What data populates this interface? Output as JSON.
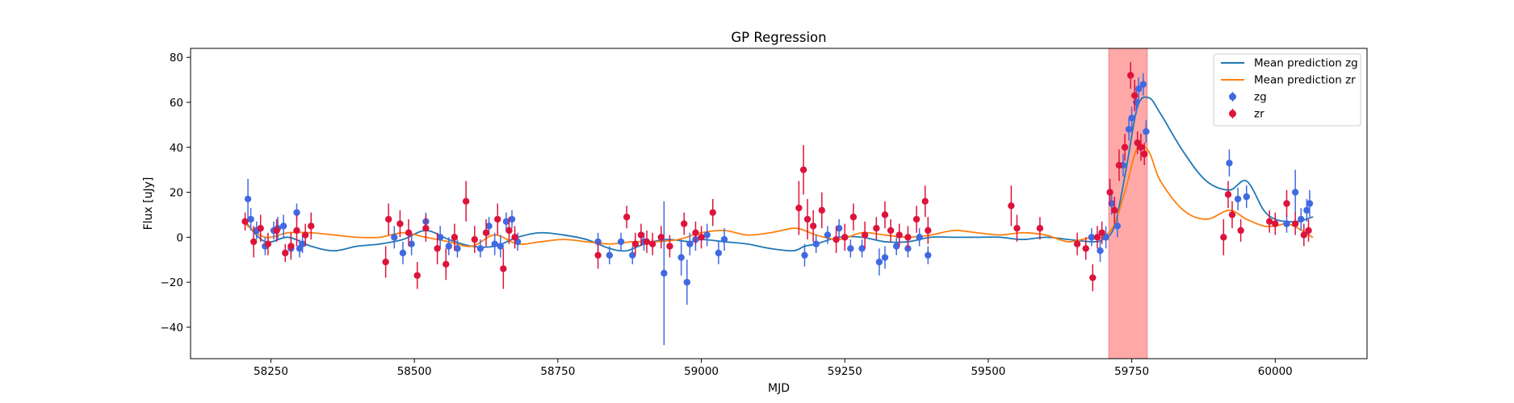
{
  "chart_data": {
    "type": "scatter",
    "title": "GP Regression",
    "xlabel": "MJD",
    "ylabel": "Flux [uJy]",
    "xlim": [
      58110,
      60160
    ],
    "ylim": [
      -54,
      84
    ],
    "xticks": [
      58250,
      58500,
      58750,
      59000,
      59250,
      59500,
      59750,
      60000
    ],
    "yticks": [
      -40,
      -20,
      0,
      20,
      40,
      60,
      80
    ],
    "grid": false,
    "legend_position": "top-right",
    "shaded_region": {
      "x": [
        59710,
        59777
      ],
      "color": "#ff9999"
    },
    "series": [
      {
        "name": "Mean prediction zg",
        "kind": "line",
        "color": "#1f77b4",
        "x": [
          58205,
          58240,
          58280,
          58320,
          58360,
          58400,
          58440,
          58480,
          58520,
          58560,
          58600,
          58640,
          58680,
          58720,
          58760,
          58800,
          58840,
          58870,
          58900,
          58940,
          58980,
          59000,
          59040,
          59080,
          59120,
          59160,
          59180,
          59200,
          59240,
          59280,
          59320,
          59360,
          59400,
          59440,
          59480,
          59520,
          59560,
          59600,
          59640,
          59680,
          59700,
          59720,
          59740,
          59760,
          59780,
          59800,
          59840,
          59880,
          59920,
          59950,
          59980,
          60000,
          60020,
          60040,
          60065
        ],
        "y": [
          7,
          -2,
          0,
          -4,
          -6,
          -4,
          -3,
          -1,
          3,
          -1,
          -4,
          -4,
          0,
          2,
          1,
          -1,
          -5,
          -6,
          -3,
          -1,
          -2,
          -1,
          -2,
          -3,
          -5,
          -6,
          -4,
          -3,
          0,
          0,
          -2,
          -2,
          0,
          0,
          0,
          0,
          -1,
          0,
          -1,
          -2,
          -1,
          5,
          30,
          58,
          62,
          55,
          38,
          25,
          21,
          25,
          12,
          8,
          7,
          7,
          9
        ]
      },
      {
        "name": "Mean prediction zr",
        "kind": "line",
        "color": "#ff7f0e",
        "x": [
          58205,
          58240,
          58280,
          58320,
          58360,
          58400,
          58440,
          58480,
          58520,
          58560,
          58600,
          58640,
          58680,
          58720,
          58760,
          58800,
          58840,
          58880,
          58920,
          58960,
          59000,
          59040,
          59080,
          59120,
          59160,
          59180,
          59200,
          59240,
          59280,
          59320,
          59360,
          59400,
          59440,
          59480,
          59520,
          59560,
          59600,
          59640,
          59680,
          59700,
          59720,
          59740,
          59760,
          59780,
          59800,
          59840,
          59880,
          59920,
          59950,
          59980,
          60000,
          60020,
          60040,
          60065
        ],
        "y": [
          6,
          0,
          2,
          2,
          1,
          0,
          0,
          2,
          0,
          -2,
          -4,
          1,
          -3,
          -2,
          -1,
          -2,
          -3,
          -2,
          -2,
          -1,
          2,
          3,
          1,
          2,
          4,
          3,
          1,
          -1,
          2,
          1,
          0,
          1,
          3,
          2,
          1,
          2,
          1,
          -2,
          0,
          0,
          6,
          22,
          40,
          38,
          25,
          12,
          8,
          12,
          8,
          5,
          5,
          6,
          4,
          0
        ]
      },
      {
        "name": "zg",
        "kind": "errorbar",
        "color": "#4169e1",
        "x": [
          58210,
          58215,
          58225,
          58240,
          58255,
          58262,
          58272,
          58285,
          58295,
          58300,
          58305,
          58465,
          58480,
          58495,
          58520,
          58545,
          58560,
          58575,
          58615,
          58630,
          58640,
          58650,
          58660,
          58670,
          58680,
          58820,
          58840,
          58860,
          58880,
          58900,
          58935,
          58965,
          58975,
          58980,
          58990,
          59010,
          59030,
          59040,
          59180,
          59200,
          59220,
          59240,
          59260,
          59280,
          59310,
          59320,
          59340,
          59360,
          59380,
          59395,
          59680,
          59695,
          59705,
          59715,
          59725,
          59735,
          59745,
          59750,
          59758,
          59762,
          59770,
          59775,
          59920,
          59935,
          59950,
          60020,
          60035,
          60045,
          60055,
          60060
        ],
        "y": [
          17,
          8,
          3,
          -4,
          3,
          4,
          5,
          -5,
          11,
          -5,
          -3,
          0,
          -7,
          -3,
          7,
          0,
          -4,
          -5,
          -5,
          5,
          -3,
          -4,
          7,
          8,
          -2,
          -2,
          -8,
          -2,
          -8,
          -2,
          -16,
          -9,
          -20,
          -3,
          -1,
          1,
          -7,
          -1,
          -8,
          -3,
          1,
          4,
          -5,
          -5,
          -11,
          -9,
          -4,
          -5,
          0,
          -8,
          0,
          -6,
          0,
          15,
          5,
          32,
          48,
          53,
          60,
          66,
          68,
          47,
          33,
          17,
          18,
          6,
          20,
          8,
          12,
          15
        ],
        "err": [
          9,
          5,
          4,
          4,
          4,
          5,
          5,
          4,
          4,
          4,
          4,
          5,
          5,
          5,
          4,
          5,
          4,
          4,
          4,
          4,
          5,
          5,
          4,
          4,
          4,
          4,
          4,
          4,
          4,
          4,
          32,
          8,
          10,
          5,
          5,
          5,
          5,
          5,
          5,
          4,
          4,
          4,
          4,
          4,
          6,
          5,
          4,
          4,
          4,
          4,
          4,
          5,
          5,
          5,
          5,
          5,
          5,
          5,
          5,
          5,
          5,
          5,
          6,
          5,
          5,
          4,
          10,
          5,
          5,
          6
        ]
      },
      {
        "name": "zr",
        "kind": "errorbar",
        "color": "#dc143c",
        "x": [
          58205,
          58220,
          58232,
          58245,
          58260,
          58275,
          58285,
          58295,
          58310,
          58320,
          58450,
          58455,
          58475,
          58490,
          58505,
          58520,
          58540,
          58555,
          58570,
          58590,
          58605,
          58625,
          58645,
          58655,
          58665,
          58675,
          58820,
          58870,
          58885,
          58895,
          58905,
          58915,
          58930,
          58945,
          58970,
          58990,
          59000,
          59020,
          59170,
          59178,
          59185,
          59195,
          59210,
          59235,
          59250,
          59265,
          59285,
          59305,
          59320,
          59330,
          59345,
          59360,
          59375,
          59390,
          59395,
          59540,
          59550,
          59590,
          59655,
          59670,
          59682,
          59690,
          59698,
          59712,
          59720,
          59728,
          59738,
          59748,
          59755,
          59760,
          59766,
          59772,
          59910,
          59918,
          59925,
          59940,
          59990,
          60000,
          60020,
          60035,
          60050,
          60058
        ],
        "y": [
          7,
          -2,
          4,
          -3,
          3,
          -7,
          -4,
          3,
          1,
          5,
          -11,
          8,
          6,
          2,
          -17,
          4,
          -5,
          -12,
          0,
          16,
          -1,
          2,
          8,
          -14,
          3,
          0,
          -8,
          9,
          -3,
          1,
          -2,
          -3,
          0,
          -4,
          6,
          2,
          0,
          11,
          13,
          30,
          8,
          5,
          12,
          -1,
          0,
          9,
          1,
          4,
          10,
          3,
          1,
          0,
          8,
          16,
          3,
          14,
          4,
          4,
          -3,
          -5,
          -18,
          0,
          2,
          20,
          12,
          32,
          40,
          72,
          63,
          42,
          40,
          37,
          0,
          19,
          10,
          3,
          7,
          6,
          15,
          6,
          1,
          3
        ],
        "err": [
          4,
          7,
          6,
          5,
          5,
          4,
          6,
          7,
          5,
          6,
          7,
          7,
          6,
          6,
          6,
          6,
          7,
          7,
          6,
          9,
          6,
          6,
          7,
          9,
          6,
          5,
          6,
          5,
          5,
          5,
          5,
          5,
          5,
          5,
          5,
          5,
          5,
          6,
          12,
          11,
          9,
          7,
          8,
          6,
          6,
          6,
          6,
          5,
          6,
          5,
          5,
          5,
          6,
          7,
          6,
          9,
          6,
          5,
          5,
          5,
          6,
          5,
          5,
          6,
          6,
          7,
          6,
          6,
          7,
          5,
          6,
          5,
          8,
          6,
          6,
          5,
          5,
          5,
          6,
          5,
          5,
          5
        ]
      }
    ]
  }
}
